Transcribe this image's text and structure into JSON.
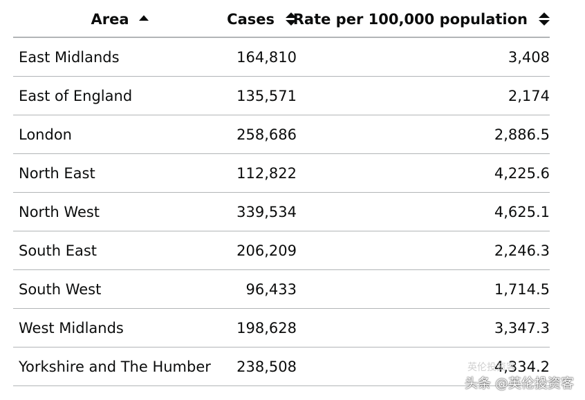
{
  "table": {
    "headers": {
      "area": "Area",
      "cases": "Cases",
      "rate": "Rate per 100,000 population"
    },
    "sort": {
      "area": "ascending",
      "cases": "none",
      "rate": "none"
    },
    "rows": [
      {
        "area": "East Midlands",
        "cases": "164,810",
        "rate": "3,408"
      },
      {
        "area": "East of England",
        "cases": "135,571",
        "rate": "2,174"
      },
      {
        "area": "London",
        "cases": "258,686",
        "rate": "2,886.5"
      },
      {
        "area": "North East",
        "cases": "112,822",
        "rate": "4,225.6"
      },
      {
        "area": "North West",
        "cases": "339,534",
        "rate": "4,625.1"
      },
      {
        "area": "South East",
        "cases": "206,209",
        "rate": "2,246.3"
      },
      {
        "area": "South West",
        "cases": "96,433",
        "rate": "1,714.5"
      },
      {
        "area": "West Midlands",
        "cases": "198,628",
        "rate": "3,347.3"
      },
      {
        "area": "Yorkshire and The Humber",
        "cases": "238,508",
        "rate": "4,334.2"
      }
    ]
  },
  "watermark": {
    "text": "头条 @英伦投资客",
    "ghost_text": "英伦投资客"
  }
}
